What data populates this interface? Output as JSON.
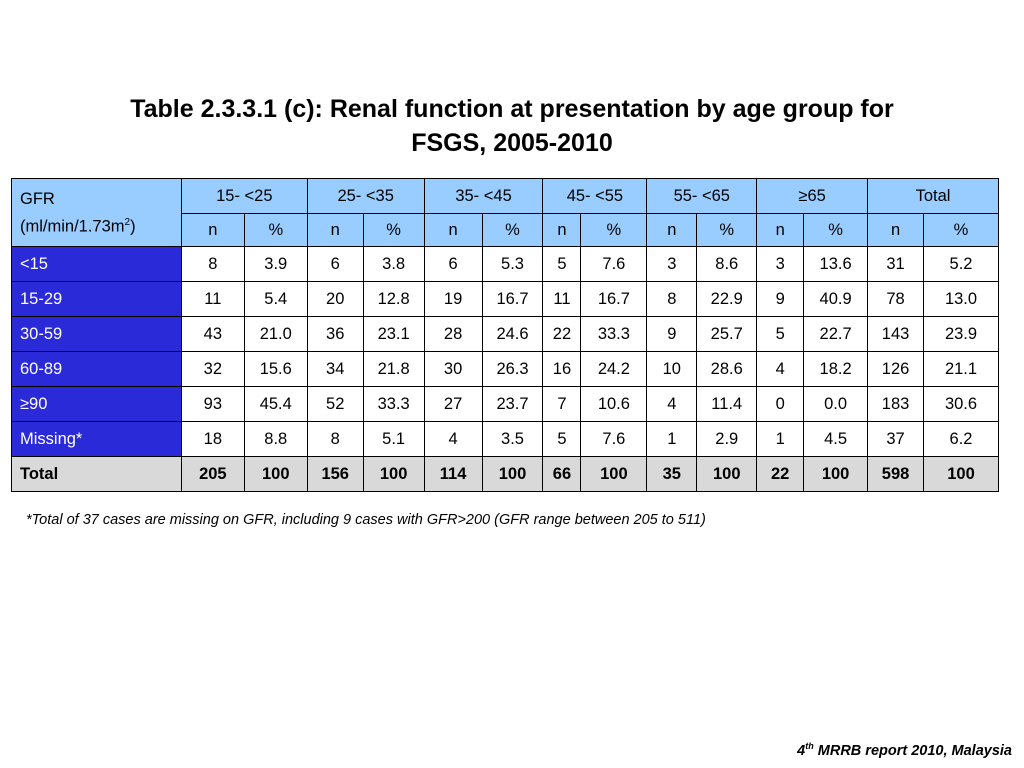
{
  "title_line1": "Table 2.3.3.1 (c): Renal function at presentation by age group for",
  "title_line2": "FSGS, 2005-2010",
  "corner_line1": "GFR",
  "corner_line2": "(ml/min/1.73m",
  "corner_sup": "2",
  "corner_close": ")",
  "groups": [
    "15- <25",
    "25- <35",
    "35- <45",
    "45- <55",
    "55- <65",
    "≥65",
    "Total"
  ],
  "sub_n": "n",
  "sub_pct": "%",
  "rows": [
    {
      "label": "<15",
      "cells": [
        "8",
        "3.9",
        "6",
        "3.8",
        "6",
        "5.3",
        "5",
        "7.6",
        "3",
        "8.6",
        "3",
        "13.6",
        "31",
        "5.2"
      ]
    },
    {
      "label": "15-29",
      "cells": [
        "11",
        "5.4",
        "20",
        "12.8",
        "19",
        "16.7",
        "11",
        "16.7",
        "8",
        "22.9",
        "9",
        "40.9",
        "78",
        "13.0"
      ]
    },
    {
      "label": "30-59",
      "cells": [
        "43",
        "21.0",
        "36",
        "23.1",
        "28",
        "24.6",
        "22",
        "33.3",
        "9",
        "25.7",
        "5",
        "22.7",
        "143",
        "23.9"
      ]
    },
    {
      "label": "60-89",
      "cells": [
        "32",
        "15.6",
        "34",
        "21.8",
        "30",
        "26.3",
        "16",
        "24.2",
        "10",
        "28.6",
        "4",
        "18.2",
        "126",
        "21.1"
      ]
    },
    {
      "label": "≥90",
      "cells": [
        "93",
        "45.4",
        "52",
        "33.3",
        "27",
        "23.7",
        "7",
        "10.6",
        "4",
        "11.4",
        "0",
        "0.0",
        "183",
        "30.6"
      ]
    },
    {
      "label": "Missing*",
      "cells": [
        "18",
        "8.8",
        "8",
        "5.1",
        "4",
        "3.5",
        "5",
        "7.6",
        "1",
        "2.9",
        "1",
        "4.5",
        "37",
        "6.2"
      ]
    }
  ],
  "total": {
    "label": "Total",
    "cells": [
      "205",
      "100",
      "156",
      "100",
      "114",
      "100",
      "66",
      "100",
      "35",
      "100",
      "22",
      "100",
      "598",
      "100"
    ]
  },
  "footnote": "*Total of 37 cases are missing on GFR, including 9 cases with GFR>200 (GFR range between 205 to 511)",
  "source_num": "4",
  "source_sup": "th",
  "source_rest": " MRRB report 2010, Malaysia",
  "colors": {
    "header_bg": "#99ccff",
    "row_label_bg": "#2a2ad8",
    "total_bg": "#d9d9d9"
  }
}
